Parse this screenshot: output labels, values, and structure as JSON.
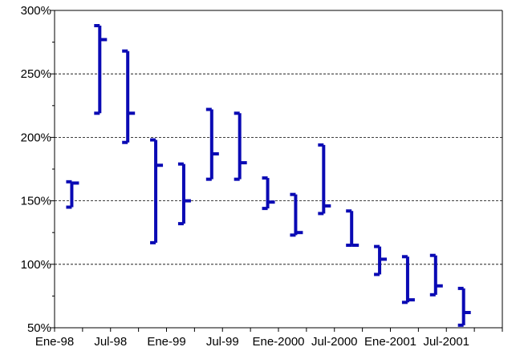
{
  "chart_data": {
    "type": "high-low-close",
    "title": "",
    "xlabel": "",
    "ylabel": "",
    "ylim": [
      50,
      300
    ],
    "y_ticks": [
      50,
      100,
      150,
      200,
      250,
      300
    ],
    "y_tick_labels": [
      "50%",
      "100%",
      "150%",
      "200%",
      "250%",
      "300%"
    ],
    "y_unit": "%",
    "x_tick_labels": [
      "Ene-98",
      "Jul-98",
      "Ene-99",
      "Jul-99",
      "Ene-2000",
      "Jul-2000",
      "Ene-2001",
      "Jul-2001"
    ],
    "grid": "horizontal dashed",
    "legend": "none",
    "color": "#0a0ab4",
    "points": [
      {
        "high": 165,
        "low": 145,
        "close": 164
      },
      {
        "high": 288,
        "low": 219,
        "close": 277
      },
      {
        "high": 268,
        "low": 196,
        "close": 219
      },
      {
        "high": 198,
        "low": 117,
        "close": 178
      },
      {
        "high": 179,
        "low": 132,
        "close": 150
      },
      {
        "high": 222,
        "low": 167,
        "close": 187
      },
      {
        "high": 219,
        "low": 167,
        "close": 180
      },
      {
        "high": 168,
        "low": 144,
        "close": 149
      },
      {
        "high": 155,
        "low": 123,
        "close": 125
      },
      {
        "high": 194,
        "low": 140,
        "close": 146
      },
      {
        "high": 142,
        "low": 115,
        "close": 115
      },
      {
        "high": 114,
        "low": 92,
        "close": 104
      },
      {
        "high": 106,
        "low": 70,
        "close": 72
      },
      {
        "high": 107,
        "low": 76,
        "close": 83
      },
      {
        "high": 81,
        "low": 52,
        "close": 62
      }
    ]
  }
}
